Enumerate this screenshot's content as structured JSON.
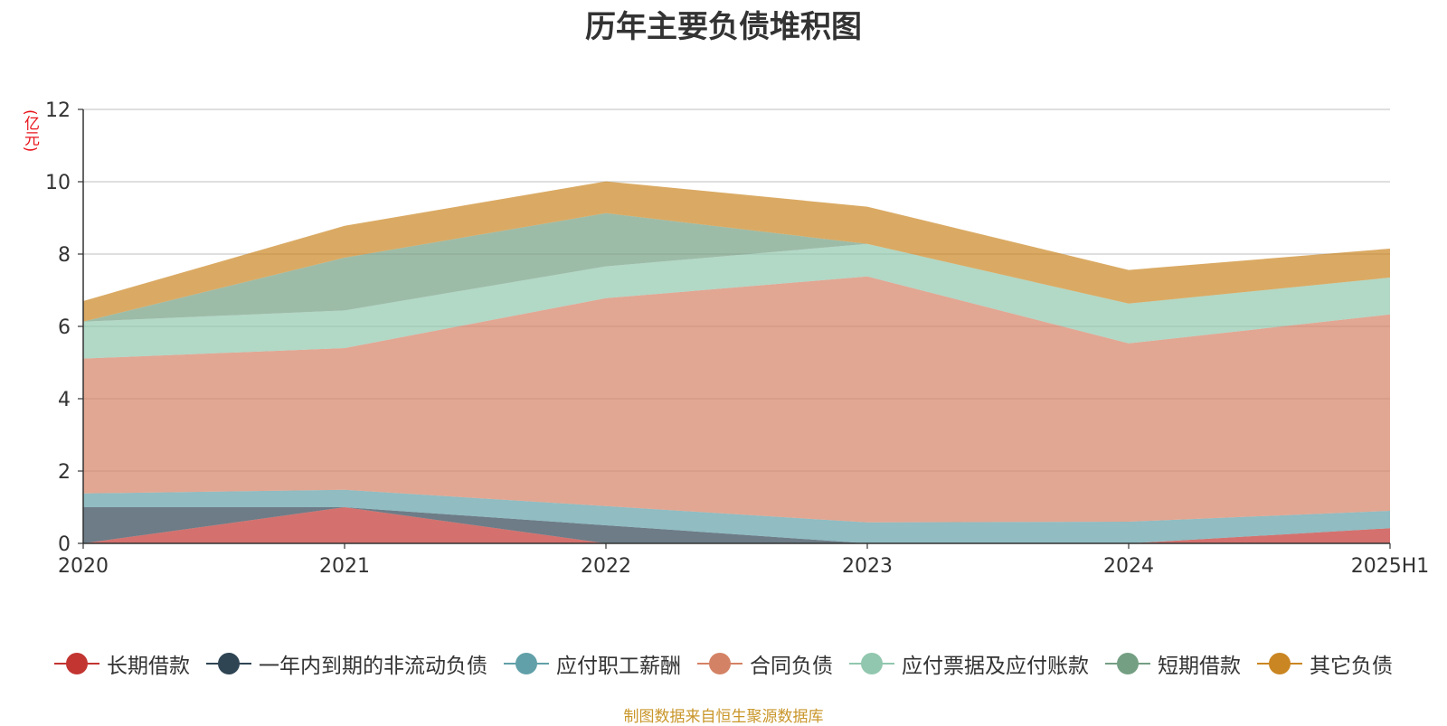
{
  "chart_data": {
    "type": "area",
    "title": "历年主要负债堆积图",
    "ylabel": "(亿元)",
    "xlabel": "",
    "categories": [
      "2020",
      "2021",
      "2022",
      "2023",
      "2024",
      "2025H1"
    ],
    "ylim": [
      0,
      12
    ],
    "yticks": [
      0,
      2,
      4,
      6,
      8,
      10,
      12
    ],
    "stacked": true,
    "grid": true,
    "legend_position": "bottom",
    "series": [
      {
        "name": "长期借款",
        "color": "#c23531",
        "values": [
          0.0,
          1.0,
          0.0,
          0.0,
          0.0,
          0.42
        ]
      },
      {
        "name": "一年内到期的非流动负债",
        "color": "#2f4554",
        "values": [
          1.0,
          0.0,
          0.5,
          0.0,
          0.0,
          0.0
        ]
      },
      {
        "name": "应付职工薪酬",
        "color": "#61a0a8",
        "values": [
          0.38,
          0.48,
          0.53,
          0.58,
          0.6,
          0.48
        ]
      },
      {
        "name": "合同负债",
        "color": "#d48265",
        "values": [
          3.73,
          3.92,
          5.75,
          6.8,
          4.93,
          5.43
        ]
      },
      {
        "name": "应付票据及应付账款",
        "color": "#91c7ae",
        "values": [
          1.02,
          1.04,
          0.88,
          0.9,
          1.1,
          1.02
        ]
      },
      {
        "name": "短期借款",
        "color": "#749f83",
        "values": [
          0.0,
          1.46,
          1.47,
          0.0,
          0.0,
          0.0
        ]
      },
      {
        "name": "其它负债",
        "color": "#ca8622",
        "values": [
          0.57,
          0.88,
          0.88,
          1.03,
          0.93,
          0.8
        ]
      }
    ]
  },
  "source_note": "制图数据来自恒生聚源数据库"
}
